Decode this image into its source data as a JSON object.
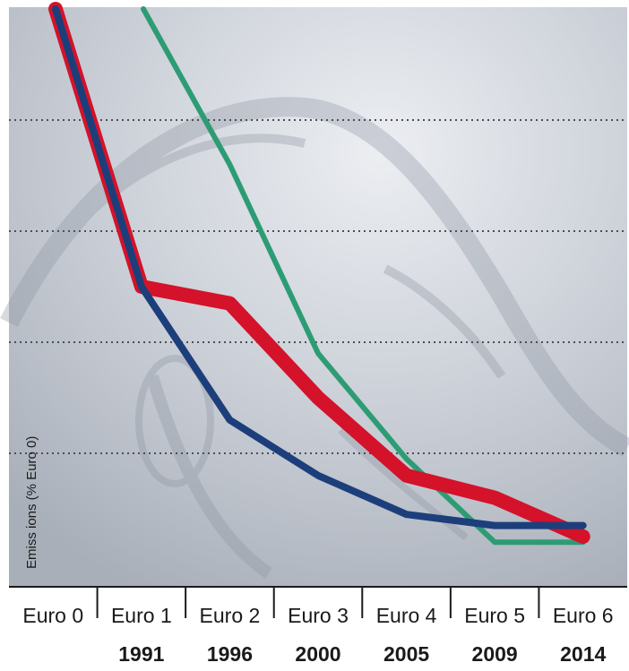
{
  "chart_data": {
    "type": "line",
    "categories": [
      "Euro 0",
      "Euro 1",
      "Euro 2",
      "Euro 3",
      "Euro 4",
      "Euro 5",
      "Euro 6"
    ],
    "years": [
      "",
      "1991",
      "1996",
      "2000",
      "2005",
      "2009",
      "2014"
    ],
    "ylabel": "Emiss ions (% Euro 0)",
    "ylim": [
      0,
      100
    ],
    "grid": true,
    "series": [
      {
        "color": "#2d9c74",
        "values": [
          null,
          100,
          72,
          38,
          19,
          4,
          4
        ]
      },
      {
        "color": "#d4122a",
        "values": [
          100,
          50,
          47,
          30,
          16,
          12,
          5
        ]
      },
      {
        "color": "#1c3f7c",
        "values": [
          100,
          50,
          26,
          16,
          9,
          7,
          7
        ]
      }
    ]
  }
}
